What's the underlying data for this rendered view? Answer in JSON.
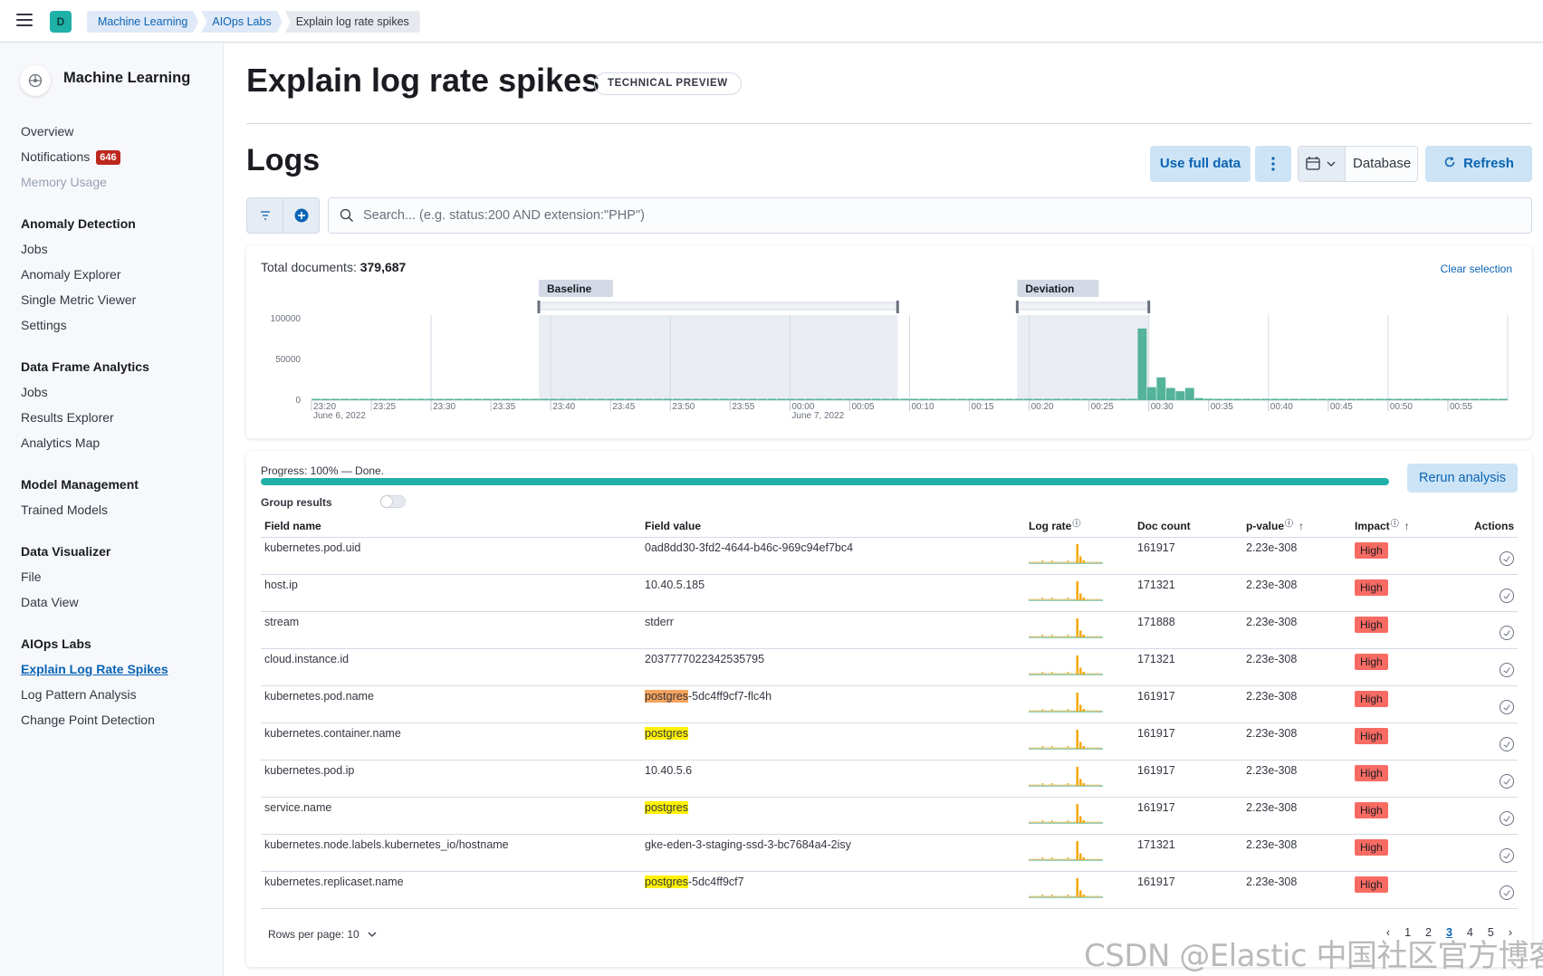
{
  "header": {
    "space_initial": "D",
    "breadcrumbs": [
      "Machine Learning",
      "AIOps Labs",
      "Explain log rate spikes"
    ]
  },
  "sidebar": {
    "title": "Machine Learning",
    "items": [
      {
        "label": "Overview",
        "type": "link"
      },
      {
        "label": "Notifications",
        "type": "link",
        "badge": "646"
      },
      {
        "label": "Memory Usage",
        "type": "disabled"
      },
      {
        "label": "Anomaly Detection",
        "type": "group"
      },
      {
        "label": "Jobs",
        "type": "link"
      },
      {
        "label": "Anomaly Explorer",
        "type": "link"
      },
      {
        "label": "Single Metric Viewer",
        "type": "link"
      },
      {
        "label": "Settings",
        "type": "link"
      },
      {
        "label": "Data Frame Analytics",
        "type": "group"
      },
      {
        "label": "Jobs",
        "type": "link"
      },
      {
        "label": "Results Explorer",
        "type": "link"
      },
      {
        "label": "Analytics Map",
        "type": "link"
      },
      {
        "label": "Model Management",
        "type": "group"
      },
      {
        "label": "Trained Models",
        "type": "link"
      },
      {
        "label": "Data Visualizer",
        "type": "group"
      },
      {
        "label": "File",
        "type": "link"
      },
      {
        "label": "Data View",
        "type": "link"
      },
      {
        "label": "AIOps Labs",
        "type": "group"
      },
      {
        "label": "Explain Log Rate Spikes",
        "type": "active"
      },
      {
        "label": "Log Pattern Analysis",
        "type": "link"
      },
      {
        "label": "Change Point Detection",
        "type": "link"
      }
    ]
  },
  "page": {
    "title": "Explain log rate spikes",
    "badge": "TECHNICAL PREVIEW",
    "data_view_title": "Logs"
  },
  "toolbar": {
    "use_full_data": "Use full data",
    "date_label": "Database",
    "refresh": "Refresh"
  },
  "search": {
    "placeholder": "Search... (e.g. status:200 AND extension:\"PHP\")"
  },
  "chart_panel": {
    "total_docs_label": "Total documents:",
    "total_docs_value": "379,687",
    "clear_selection": "Clear selection"
  },
  "chart_data": {
    "type": "bar",
    "y_ticks": [
      "100000",
      "50000",
      "0"
    ],
    "ylim": [
      0,
      100000
    ],
    "x_ticks": [
      "23:20",
      "23:25",
      "23:30",
      "23:35",
      "23:40",
      "23:45",
      "23:50",
      "23:55",
      "00:00",
      "00:05",
      "00:10",
      "00:15",
      "00:20",
      "00:25",
      "00:30",
      "00:35",
      "00:40",
      "00:45",
      "00:50",
      "00:55"
    ],
    "x_date_labels": [
      {
        "tick": "23:20",
        "date": "June 6, 2022"
      },
      {
        "tick": "00:00",
        "date": "June 7, 2022"
      }
    ],
    "brushes": [
      {
        "label": "Baseline",
        "from": "23:39",
        "to": "00:09"
      },
      {
        "label": "Deviation",
        "from": "00:19",
        "to": "00:30"
      }
    ],
    "series": [
      {
        "values": [
          1200,
          1500,
          1100,
          1300,
          1400,
          1200,
          1500,
          1300,
          1100,
          1400,
          1300,
          1200,
          1500,
          1400,
          1300,
          1200,
          1100,
          1300,
          1400,
          1500,
          1200,
          1300,
          1100,
          1400,
          1200,
          1300,
          1500,
          1400,
          1200,
          1100,
          1300,
          1400,
          1200,
          1500,
          1300,
          1100,
          1200,
          1400,
          1300,
          1500,
          1200,
          1300,
          1400,
          1100,
          1200,
          1500,
          1300,
          1400,
          1200,
          1100,
          1300,
          1500,
          1400,
          1200,
          1300,
          1100,
          1400,
          1200,
          1300,
          1500,
          1200,
          1400,
          1300,
          1100,
          1200,
          1500,
          1400,
          1300,
          1200,
          1100,
          1300,
          1400,
          1200,
          1500,
          1300,
          1200,
          1400,
          1100,
          1300,
          1500,
          1200,
          1300,
          1400,
          1200,
          1100,
          1300,
          1500,
          88000,
          16000,
          28000,
          15000,
          11000,
          15000,
          2500,
          1800,
          1400,
          1300,
          1200,
          1500,
          1100,
          1300,
          1400,
          1200,
          1300,
          1500,
          1100,
          1300,
          1200,
          1400,
          1300,
          1100,
          1200,
          1500,
          1400,
          1300,
          1200,
          1100,
          1300,
          1400,
          1200,
          1500,
          1300,
          1200,
          1400,
          1100,
          1300
        ]
      }
    ],
    "colors": {
      "default": "#54b399",
      "spike": "#54b399"
    }
  },
  "results": {
    "progress_label": "Progress: 100% — Done.",
    "progress": 1.0,
    "rerun": "Rerun analysis",
    "group_results_label": "Group results",
    "columns": [
      "Field name",
      "Field value",
      "Log rate",
      "Doc count",
      "p-value",
      "Impact",
      "Actions"
    ],
    "rows": [
      {
        "field": "kubernetes.pod.uid",
        "value": [
          {
            "t": "0ad8dd30-3fd2-4644-b46c-969c94ef7bc4"
          }
        ],
        "doc_count": "161917",
        "p_value": "2.23e-308",
        "impact": "High"
      },
      {
        "field": "host.ip",
        "value": [
          {
            "t": "10.40.5.185"
          }
        ],
        "doc_count": "171321",
        "p_value": "2.23e-308",
        "impact": "High"
      },
      {
        "field": "stream",
        "value": [
          {
            "t": "stderr"
          }
        ],
        "doc_count": "171888",
        "p_value": "2.23e-308",
        "impact": "High"
      },
      {
        "field": "cloud.instance.id",
        "value": [
          {
            "t": "2037777022342535795"
          }
        ],
        "doc_count": "171321",
        "p_value": "2.23e-308",
        "impact": "High"
      },
      {
        "field": "kubernetes.pod.name",
        "value": [
          {
            "t": "postgres",
            "hl": "orange"
          },
          {
            "t": "-5dc4ff9cf7-flc4h"
          }
        ],
        "doc_count": "161917",
        "p_value": "2.23e-308",
        "impact": "High"
      },
      {
        "field": "kubernetes.container.name",
        "value": [
          {
            "t": "postgres",
            "hl": "yellow"
          }
        ],
        "doc_count": "161917",
        "p_value": "2.23e-308",
        "impact": "High"
      },
      {
        "field": "kubernetes.pod.ip",
        "value": [
          {
            "t": "10.40.5.6"
          }
        ],
        "doc_count": "161917",
        "p_value": "2.23e-308",
        "impact": "High"
      },
      {
        "field": "service.name",
        "value": [
          {
            "t": "postgres",
            "hl": "yellow"
          }
        ],
        "doc_count": "161917",
        "p_value": "2.23e-308",
        "impact": "High"
      },
      {
        "field": "kubernetes.node.labels.kubernetes_io/hostname",
        "value": [
          {
            "t": "gke-eden-3-staging-ssd-3-bc7684a4-2isy"
          }
        ],
        "doc_count": "171321",
        "p_value": "2.23e-308",
        "impact": "High"
      },
      {
        "field": "kubernetes.replicaset.name",
        "value": [
          {
            "t": "postgres",
            "hl": "yellow"
          },
          {
            "t": "-5dc4ff9cf7"
          }
        ],
        "doc_count": "161917",
        "p_value": "2.23e-308",
        "impact": "High"
      }
    ],
    "rows_per_page": "Rows per page: 10",
    "pages": [
      "1",
      "2",
      "3",
      "4",
      "5"
    ],
    "current_page": "3"
  },
  "watermark": "CSDN @Elastic 中国社区官方博客"
}
